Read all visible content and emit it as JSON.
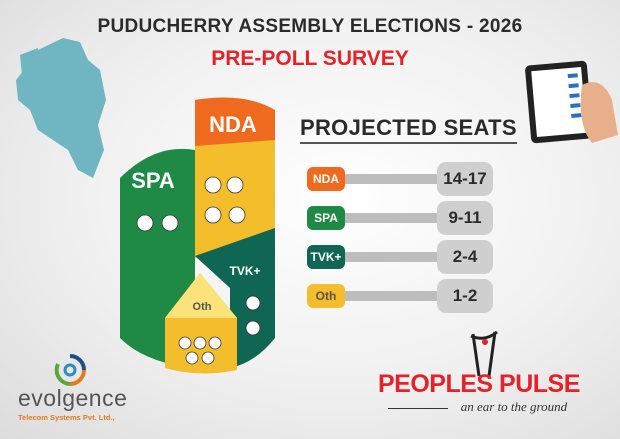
{
  "header": {
    "title": "PUDUCHERRY ASSEMBLY  ELECTIONS - 2026",
    "subtitle": "PRE-POLL SURVEY"
  },
  "seats": {
    "title": "PROJECTED SEATS"
  },
  "chart_data": {
    "type": "table",
    "title": "PROJECTED SEATS",
    "categories": [
      "NDA",
      "SPA",
      "TVK+",
      "Oth"
    ],
    "series": [
      {
        "name": "seats_low",
        "values": [
          14,
          9,
          2,
          1
        ]
      },
      {
        "name": "seats_high",
        "values": [
          17,
          11,
          4,
          2
        ]
      }
    ],
    "labels": [
      "14-17",
      "9-11",
      "2-4",
      "1-2"
    ],
    "colors": [
      "#ef6a1f",
      "#1f8a45",
      "#0f6652",
      "#f3bd2c"
    ]
  },
  "cylinder": {
    "labels": [
      "NDA",
      "SPA",
      "TVK+",
      "Oth"
    ]
  },
  "logos": {
    "evolgence": "evolgence",
    "evolgence_sub": "Telecom Systems Pvt. Ltd.,",
    "peoples_pulse": "PEOPLES PULSE",
    "tagline": "an ear to the ground"
  }
}
